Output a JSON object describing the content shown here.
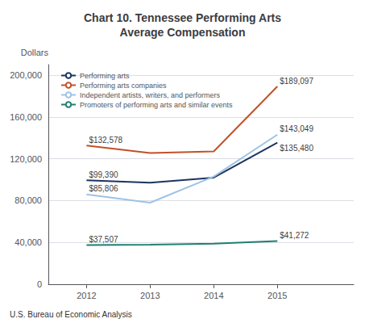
{
  "chart_data": {
    "type": "line",
    "title": "Chart 10. Tennessee Performing Arts\nAverage Compensation",
    "ylabel": "Dollars",
    "note": "U.S. Bureau of Economic Analysis",
    "x": [
      2012,
      2013,
      2014,
      2015
    ],
    "xlim": [
      2011.4,
      2016.2
    ],
    "xticks": [
      2012,
      2013,
      2014,
      2015
    ],
    "series": [
      {
        "name": "Performing arts",
        "color": "#1c3461",
        "values": [
          99390,
          97000,
          102000,
          135480
        ]
      },
      {
        "name": "Performing arts companies",
        "color": "#c0522a",
        "values": [
          132578,
          125500,
          127000,
          189097
        ]
      },
      {
        "name": "Independent artists, writers, and performers",
        "color": "#9dc3e6",
        "values": [
          85806,
          78000,
          103000,
          143049
        ]
      },
      {
        "name": "Promoters of performing arts and similar events",
        "color": "#1f7f72",
        "values": [
          37507,
          37900,
          38800,
          41272
        ]
      }
    ],
    "ylim": [
      0,
      210000
    ],
    "yticks": [
      0,
      {
        "value": 40000,
        "label": "40,000"
      },
      {
        "value": 80000,
        "label": "80,000"
      },
      {
        "value": 120000,
        "label": "120,000"
      },
      {
        "value": 160000,
        "label": "160,000"
      },
      {
        "value": 200000,
        "label": "200,000"
      }
    ],
    "grid": true,
    "legend": "upper left",
    "annotations": [
      {
        "x": 2012,
        "y": 132578,
        "text": "$132,578"
      },
      {
        "x": 2012,
        "y": 99390,
        "text": "$99,390"
      },
      {
        "x": 2012,
        "y": 85806,
        "text": "$85,806"
      },
      {
        "x": 2012,
        "y": 37507,
        "text": "$37,507"
      },
      {
        "x": 2015,
        "y": 189097,
        "text": "$189,097"
      },
      {
        "x": 2015,
        "y": 143049,
        "text": "$143,049"
      },
      {
        "x": 2015,
        "y": 135480,
        "text": "$135,480"
      },
      {
        "x": 2015,
        "y": 41272,
        "text": "$41,272"
      }
    ]
  }
}
